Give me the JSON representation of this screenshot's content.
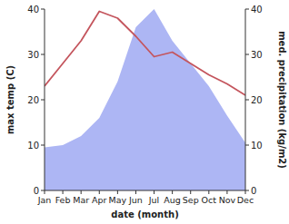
{
  "chart_data": {
    "type": "line",
    "x_label": "date (month)",
    "y_label": "max temp (C)",
    "y2_label": "med. precipitation (kg/m2)",
    "categories": [
      "Jan",
      "Feb",
      "Mar",
      "Apr",
      "May",
      "Jun",
      "Jul",
      "Aug",
      "Sep",
      "Oct",
      "Nov",
      "Dec"
    ],
    "series": [
      {
        "name": "med. precipitation",
        "type": "area",
        "axis": "y2",
        "color": "#adb6f4",
        "values": [
          9.5,
          10,
          12,
          16,
          24,
          36,
          40,
          33,
          28,
          23,
          16.5,
          10.5
        ]
      },
      {
        "name": "max temp",
        "type": "line",
        "color": "#c4555d",
        "values": [
          23,
          28,
          33,
          39.5,
          38,
          34,
          29.5,
          30.5,
          28,
          25.5,
          23.5,
          21
        ]
      }
    ],
    "ylim": [
      0,
      40
    ],
    "yticks": [
      0,
      10,
      20,
      30,
      40
    ],
    "y2lim": [
      0,
      40
    ],
    "y2ticks": [
      0,
      10,
      20,
      30,
      40
    ],
    "grid": false
  }
}
